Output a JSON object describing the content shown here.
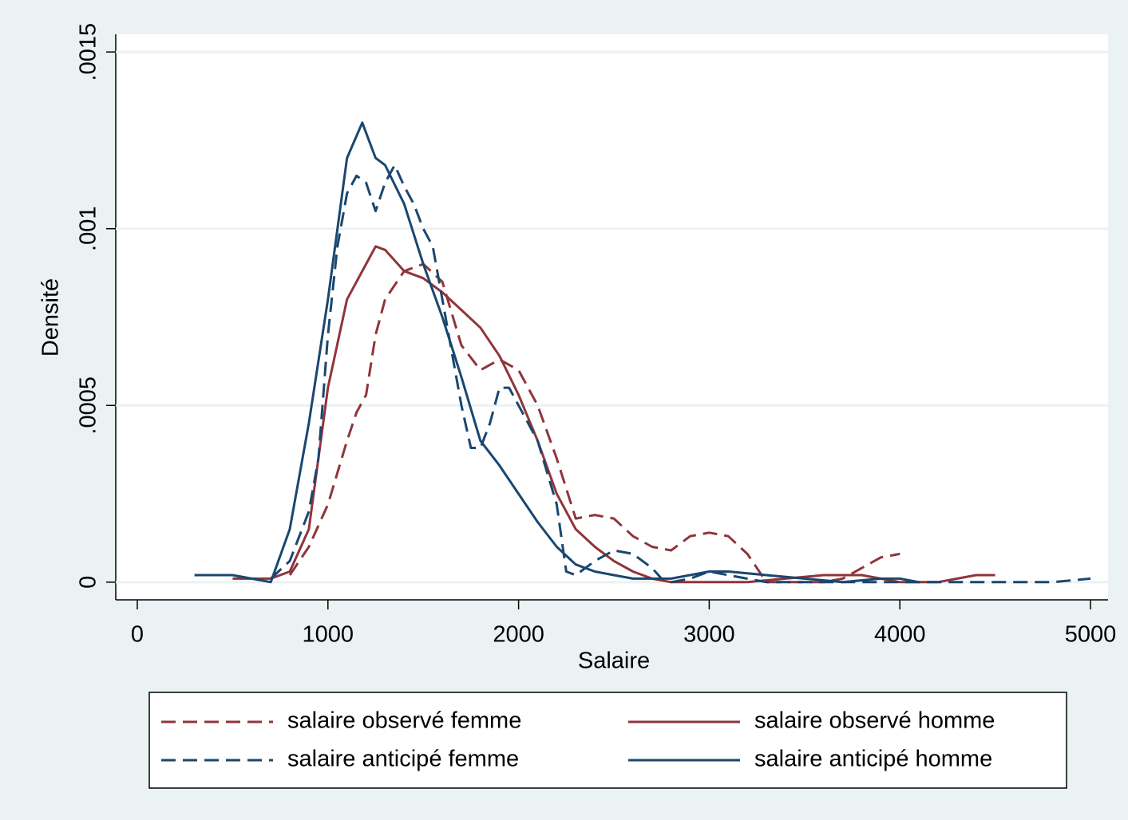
{
  "chart_data": {
    "type": "line",
    "x_label": "Salaire",
    "y_label": "Densité",
    "xlim": [
      -113,
      5092
    ],
    "ylim": [
      -5e-05,
      0.00155
    ],
    "xticks": [
      0,
      1000,
      2000,
      3000,
      4000,
      5000
    ],
    "yticks": [
      0,
      {
        "value": 0.0005,
        "label": ".0005"
      },
      {
        "value": 0.001,
        "label": ".001"
      },
      {
        "value": 0.0015,
        "label": ".0015"
      }
    ],
    "grid": true,
    "series": [
      {
        "name": "salaire observé femme",
        "color": "#90353b",
        "dash": true,
        "x": [
          800,
          900,
          1000,
          1100,
          1150,
          1200,
          1250,
          1300,
          1400,
          1500,
          1600,
          1700,
          1800,
          1900,
          2000,
          2100,
          2200,
          2300,
          2400,
          2500,
          2600,
          2700,
          2800,
          2900,
          3000,
          3100,
          3200,
          3300,
          3400,
          3500,
          3600,
          3700,
          3800,
          3900,
          4000
        ],
        "values": [
          2e-05,
          0.0001,
          0.00022,
          0.0004,
          0.00048,
          0.00053,
          0.0007,
          0.0008,
          0.00088,
          0.0009,
          0.00085,
          0.00067,
          0.0006,
          0.00063,
          0.0006,
          0.0005,
          0.00035,
          0.00018,
          0.00019,
          0.00018,
          0.00013,
          0.0001,
          9e-05,
          0.00013,
          0.00014,
          0.00013,
          8e-05,
          0,
          0,
          0,
          0,
          1e-05,
          4e-05,
          7e-05,
          8e-05
        ]
      },
      {
        "name": "salaire observé homme",
        "color": "#90353b",
        "dash": false,
        "x": [
          500,
          600,
          700,
          800,
          900,
          1000,
          1100,
          1200,
          1250,
          1300,
          1400,
          1500,
          1600,
          1700,
          1800,
          1900,
          2000,
          2100,
          2200,
          2300,
          2400,
          2500,
          2600,
          2700,
          2800,
          3000,
          3200,
          3400,
          3600,
          3800,
          3900,
          4000,
          4200,
          4300,
          4400,
          4500
        ],
        "values": [
          1e-05,
          1e-05,
          1e-05,
          3e-05,
          0.00015,
          0.00055,
          0.0008,
          0.0009,
          0.00095,
          0.00094,
          0.00088,
          0.00086,
          0.00082,
          0.00077,
          0.00072,
          0.00064,
          0.00053,
          0.0004,
          0.00025,
          0.00015,
          0.0001,
          6e-05,
          3e-05,
          1e-05,
          0,
          0,
          0,
          1e-05,
          2e-05,
          2e-05,
          1e-05,
          0,
          0,
          1e-05,
          2e-05,
          2e-05
        ]
      },
      {
        "name": "salaire anticipé femme",
        "color": "#1a476f",
        "dash": true,
        "x": [
          700,
          800,
          900,
          950,
          1000,
          1050,
          1100,
          1150,
          1200,
          1250,
          1300,
          1350,
          1400,
          1450,
          1500,
          1550,
          1600,
          1650,
          1700,
          1750,
          1800,
          1850,
          1900,
          1950,
          2000,
          2100,
          2200,
          2250,
          2300,
          2400,
          2500,
          2600,
          2700,
          2750,
          2800,
          2900,
          3000,
          3100,
          3300,
          4000,
          4500,
          4800,
          5000
        ],
        "values": [
          1e-05,
          6e-05,
          0.0002,
          0.00035,
          0.0007,
          0.00095,
          0.0011,
          0.00115,
          0.00113,
          0.00105,
          0.00113,
          0.00118,
          0.00112,
          0.00107,
          0.001,
          0.00095,
          0.0008,
          0.00065,
          0.0005,
          0.00038,
          0.00038,
          0.00045,
          0.00055,
          0.00055,
          0.0005,
          0.0004,
          0.00022,
          3e-05,
          2e-05,
          6e-05,
          9e-05,
          8e-05,
          4e-05,
          1e-05,
          0,
          1e-05,
          3e-05,
          2e-05,
          0,
          0,
          0,
          0,
          1e-05
        ]
      },
      {
        "name": "salaire anticipé homme",
        "color": "#1a476f",
        "dash": false,
        "x": [
          300,
          400,
          500,
          600,
          700,
          800,
          900,
          1000,
          1100,
          1180,
          1250,
          1300,
          1400,
          1500,
          1600,
          1700,
          1800,
          1900,
          2000,
          2100,
          2200,
          2300,
          2400,
          2500,
          2600,
          2700,
          2800,
          3000,
          3100,
          3300,
          3500,
          3700,
          3900,
          4000,
          4100
        ],
        "values": [
          2e-05,
          2e-05,
          2e-05,
          1e-05,
          0,
          0.00015,
          0.00045,
          0.0008,
          0.0012,
          0.0013,
          0.0012,
          0.00118,
          0.00107,
          0.0009,
          0.00075,
          0.00058,
          0.0004,
          0.00033,
          0.00025,
          0.00017,
          0.0001,
          5e-05,
          3e-05,
          2e-05,
          1e-05,
          1e-05,
          1e-05,
          3e-05,
          3e-05,
          2e-05,
          1e-05,
          0,
          1e-05,
          1e-05,
          0
        ]
      }
    ]
  }
}
